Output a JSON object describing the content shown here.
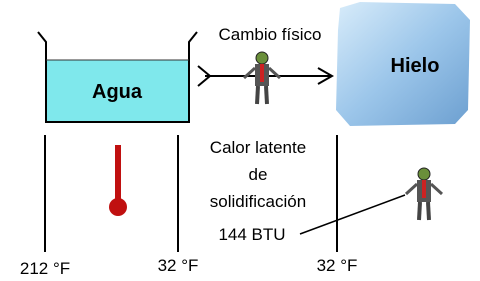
{
  "beaker": {
    "label": "Agua"
  },
  "ice": {
    "label": "Hielo"
  },
  "process": {
    "label": "Cambio físico"
  },
  "latent_heat": {
    "lines": [
      "Calor latente",
      "de",
      "solidificación"
    ],
    "amount": "144 BTU"
  },
  "temperatures": [
    "212 °F",
    "32 °F",
    "32 °F"
  ]
}
